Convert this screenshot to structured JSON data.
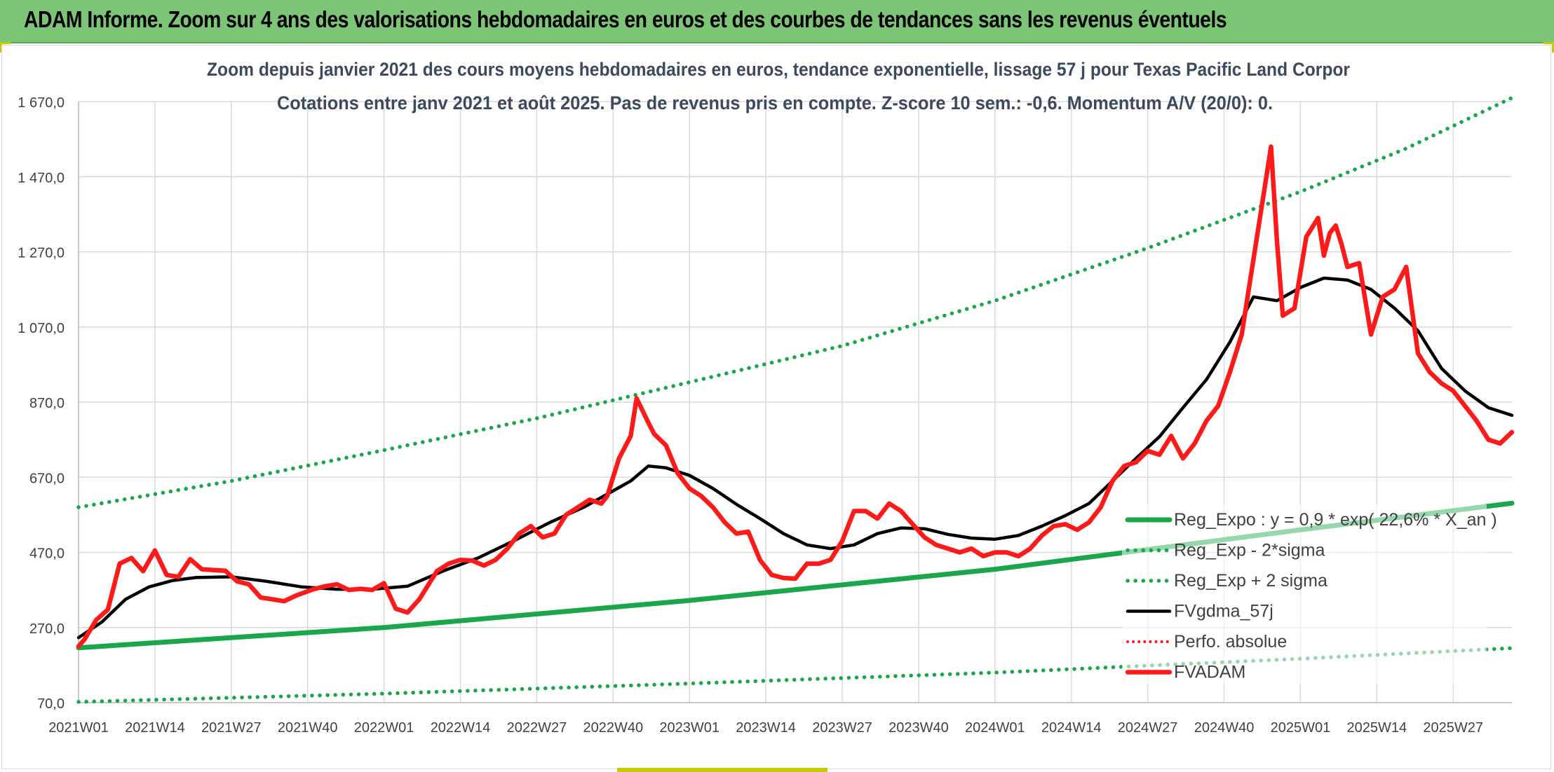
{
  "banner": {
    "title": "ADAM Informe. Zoom sur 4 ans des valorisations hebdomadaires en euros et des courbes de tendances sans les revenus éventuels"
  },
  "colors": {
    "banner": "#7cc576",
    "reg_expo": "#1aa64a",
    "fvgdma": "#000000",
    "fvadam": "#ff1a1a",
    "perfo": "#ff1a1a",
    "title_text": "#3b4a5e"
  },
  "chart_data": {
    "type": "line",
    "title": "Zoom depuis janvier 2021 des cours moyens hebdomadaires en euros, tendance exponentielle, lissage 57 j pour Texas Pacific Land Corpor",
    "subtitle": "Cotations entre janv 2021 et août 2025. Pas de revenus pris en compte. Z-score 10 sem.: -0,6. Momentum A/V (20/0): 0.",
    "xlabel": "",
    "ylabel": "",
    "ylim": [
      70,
      1670
    ],
    "y_ticks": [
      "1 670,0",
      "1 470,0",
      "1 270,0",
      "1 070,0",
      "870,0",
      "670,0",
      "470,0",
      "270,0",
      "70,0"
    ],
    "y_tick_values": [
      1670,
      1470,
      1270,
      1070,
      870,
      670,
      470,
      270,
      70
    ],
    "x_ticks": [
      "2021W01",
      "2021W14",
      "2021W27",
      "2021W40",
      "2022W01",
      "2022W14",
      "2022W27",
      "2022W40",
      "2023W01",
      "2023W14",
      "2023W27",
      "2023W40",
      "2024W01",
      "2024W14",
      "2024W27",
      "2024W40",
      "2025W01",
      "2025W14",
      "2025W27"
    ],
    "x_unit": "weeks since 2021W01",
    "x_tick_weeks": [
      0,
      13,
      26,
      39,
      52,
      65,
      78,
      91,
      104,
      117,
      130,
      143,
      156,
      169,
      182,
      195,
      208,
      221,
      234
    ],
    "x_range": [
      0,
      244
    ],
    "grid": true,
    "legend_position": "bottom-right",
    "series": [
      {
        "name": "Reg_Expo : y = 0,9 * exp( 22,6% * X_an )",
        "style": "solid",
        "weeks": [
          0,
          52,
          104,
          156,
          208,
          244
        ],
        "values": [
          216,
          270,
          342,
          425,
          530,
          601
        ]
      },
      {
        "name": "Reg_Exp - 2*sigma",
        "style": "dotted",
        "weeks": [
          0,
          52,
          104,
          156,
          208,
          244
        ],
        "values": [
          72,
          94,
          121,
          150,
          187,
          215
        ]
      },
      {
        "name": "Reg_Exp + 2 sigma",
        "style": "dotted",
        "weeks": [
          0,
          26,
          52,
          78,
          104,
          130,
          156,
          182,
          208,
          226,
          244
        ],
        "values": [
          590,
          660,
          742,
          827,
          923,
          1020,
          1140,
          1280,
          1430,
          1545,
          1680
        ]
      },
      {
        "name": "FVgdma_57j",
        "style": "solid",
        "weeks": [
          0,
          4,
          8,
          12,
          16,
          20,
          26,
          32,
          38,
          44,
          50,
          56,
          62,
          68,
          74,
          80,
          86,
          90,
          94,
          97,
          100,
          104,
          108,
          112,
          116,
          120,
          124,
          128,
          132,
          136,
          140,
          144,
          148,
          152,
          156,
          160,
          164,
          168,
          172,
          176,
          180,
          184,
          188,
          192,
          196,
          200,
          204,
          208,
          212,
          216,
          220,
          224,
          228,
          232,
          236,
          240,
          244
        ],
        "values": [
          243,
          285,
          345,
          378,
          395,
          403,
          405,
          393,
          378,
          372,
          372,
          380,
          420,
          455,
          500,
          548,
          590,
          625,
          660,
          700,
          695,
          675,
          640,
          598,
          560,
          520,
          490,
          480,
          490,
          520,
          535,
          533,
          518,
          508,
          505,
          515,
          540,
          568,
          600,
          660,
          720,
          778,
          855,
          930,
          1030,
          1150,
          1140,
          1175,
          1200,
          1195,
          1170,
          1120,
          1060,
          960,
          900,
          855,
          835
        ]
      },
      {
        "name": "Perfo. absolue",
        "style": "dotted",
        "weeks": [],
        "values": []
      },
      {
        "name": "FVADAM",
        "style": "solid",
        "weeks": [
          0,
          1,
          3,
          5,
          7,
          9,
          11,
          13,
          15,
          17,
          19,
          21,
          23,
          25,
          27,
          29,
          31,
          33,
          35,
          37,
          40,
          42,
          44,
          46,
          48,
          50,
          52,
          54,
          56,
          58,
          61,
          63,
          65,
          67,
          69,
          71,
          73,
          75,
          77,
          79,
          81,
          83,
          85,
          87,
          89,
          90,
          92,
          94,
          95,
          97,
          98,
          100,
          102,
          104,
          106,
          108,
          110,
          112,
          114,
          116,
          118,
          120,
          122,
          124,
          126,
          128,
          130,
          132,
          134,
          136,
          138,
          140,
          142,
          144,
          146,
          148,
          150,
          152,
          154,
          156,
          158,
          160,
          162,
          164,
          166,
          168,
          170,
          172,
          174,
          176,
          178,
          180,
          182,
          184,
          186,
          188,
          190,
          192,
          194,
          196,
          198,
          200,
          202,
          203,
          204,
          205,
          207,
          209,
          211,
          212,
          213,
          214,
          215,
          216,
          218,
          220,
          222,
          224,
          226,
          228,
          230,
          232,
          234,
          236,
          238,
          240,
          242,
          244
        ],
        "values": [
          220,
          238,
          290,
          318,
          440,
          455,
          420,
          475,
          410,
          405,
          452,
          425,
          423,
          421,
          393,
          385,
          350,
          345,
          340,
          355,
          372,
          380,
          385,
          370,
          373,
          370,
          388,
          320,
          310,
          345,
          420,
          440,
          450,
          448,
          435,
          450,
          480,
          520,
          540,
          510,
          520,
          570,
          590,
          610,
          600,
          620,
          720,
          780,
          880,
          815,
          785,
          755,
          680,
          640,
          620,
          590,
          550,
          520,
          525,
          450,
          410,
          402,
          400,
          440,
          440,
          450,
          500,
          580,
          580,
          560,
          600,
          580,
          545,
          510,
          490,
          480,
          470,
          480,
          460,
          470,
          470,
          460,
          480,
          515,
          540,
          545,
          530,
          550,
          590,
          660,
          700,
          710,
          740,
          730,
          780,
          720,
          760,
          820,
          860,
          950,
          1050,
          1250,
          1450,
          1550,
          1300,
          1100,
          1120,
          1310,
          1360,
          1260,
          1320,
          1340,
          1290,
          1230,
          1240,
          1050,
          1150,
          1170,
          1230,
          1000,
          950,
          920,
          900,
          860,
          820,
          770,
          760,
          790
        ]
      }
    ]
  }
}
